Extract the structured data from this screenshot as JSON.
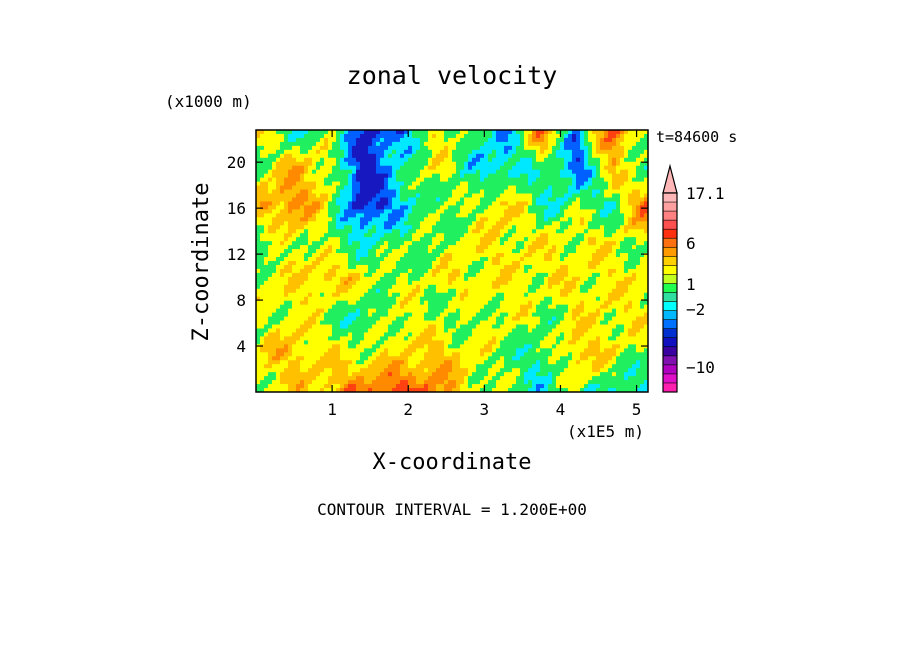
{
  "chart_data": {
    "type": "heatmap",
    "title": "zonal velocity",
    "xlabel": "X-coordinate",
    "ylabel": "Z-coordinate",
    "x_units": "(x1E5 m)",
    "y_units": "(x1000 m)",
    "time_label": "t=84600 s",
    "footer": "CONTOUR INTERVAL = 1.200E+00",
    "xlim": [
      0,
      5.15
    ],
    "ylim": [
      0,
      22.8
    ],
    "x_ticks": [
      1,
      2,
      3,
      4,
      5
    ],
    "y_ticks": [
      4,
      8,
      12,
      16,
      20
    ],
    "colorbar": {
      "levels": [
        -13.6,
        -12.4,
        -11.2,
        -10,
        -8.8,
        -7.6,
        -6.4,
        -5.2,
        -4,
        -2.8,
        -2,
        -0.8,
        0.4,
        1,
        1.6,
        2.8,
        4,
        5.2,
        6,
        7.6,
        9,
        11,
        13,
        15,
        17.1
      ],
      "labels": [
        {
          "value": 17.1,
          "text": "17.1"
        },
        {
          "value": 6,
          "text": "6"
        },
        {
          "value": 1,
          "text": "1"
        },
        {
          "value": -2,
          "text": "−2"
        },
        {
          "value": -10,
          "text": "−10"
        }
      ],
      "colors": [
        "#ff20b0",
        "#e010c8",
        "#b000c0",
        "#8010b0",
        "#3a00a0",
        "#1010c0",
        "#0030d0",
        "#0070ff",
        "#00b8ff",
        "#00ffff",
        "#30e0a0",
        "#20ff50",
        "#c0ff20",
        "#ffff00",
        "#ffd000",
        "#ff9a00",
        "#ff7010",
        "#ff3010",
        "#ff5050",
        "#ff8080",
        "#ffa0a0",
        "#ffb6b6"
      ]
    },
    "palette_order": [
      "#2020c0",
      "#00ffff",
      "#20f060",
      "#ffff00",
      "#ff9a00",
      "#ff4010"
    ],
    "field_grid": {
      "nx": 12,
      "nz": 8,
      "z_rows_top_to_bottom": [
        [
          1,
          -1,
          0,
          -3,
          -3,
          1,
          0,
          -2,
          3,
          -2,
          4,
          0
        ],
        [
          0,
          2,
          1,
          -4,
          -1,
          1,
          -1,
          -2,
          0,
          -3,
          2,
          -1
        ],
        [
          2,
          3,
          1,
          -4,
          -2,
          0,
          0,
          2,
          -1,
          0,
          -1,
          4
        ],
        [
          -1,
          1,
          0,
          -1,
          0,
          0,
          1,
          1,
          1,
          1,
          1,
          0
        ],
        [
          1,
          1,
          2,
          1,
          0,
          1,
          1,
          1,
          1,
          1,
          1,
          1
        ],
        [
          0,
          1,
          0,
          -1,
          1,
          0,
          0,
          1,
          0,
          1,
          1,
          1
        ],
        [
          1,
          2,
          1,
          1,
          1,
          2,
          1,
          0,
          -1,
          2,
          1,
          0
        ],
        [
          1,
          1,
          2,
          3,
          4,
          3,
          1,
          0,
          -1,
          0,
          -1,
          -1
        ]
      ]
    }
  }
}
